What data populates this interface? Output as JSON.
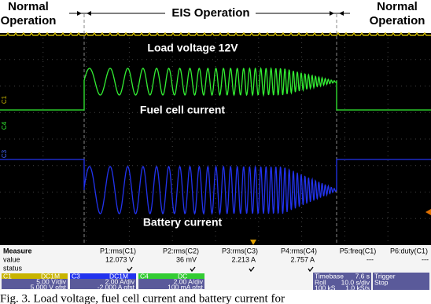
{
  "header": {
    "left": [
      "Normal",
      "Operation"
    ],
    "center": "EIS Operation",
    "right": [
      "Normal",
      "Operation"
    ]
  },
  "screen": {
    "annotations": {
      "load": "Load voltage 12V",
      "fuel": "Fuel cell current",
      "battery": "Battery current"
    },
    "channel_markers": [
      "C1",
      "C4",
      "C3"
    ]
  },
  "measure": {
    "columns": [
      "Measure",
      "P1:rms(C1)",
      "P2:rms(C2)",
      "P3:rms(C3)",
      "P4:rms(C4)",
      "P5:freq(C1)",
      "P6:duty(C1)"
    ],
    "row_labels": [
      "value",
      "status"
    ],
    "values": [
      "12.073 V",
      "36 mV",
      "2.213 A",
      "2.757 A",
      "---",
      "---"
    ]
  },
  "channels": [
    {
      "name": "C1",
      "coupling": "DC1M",
      "scale": "5.00 V/div",
      "offset": "5.000 V ofst"
    },
    {
      "name": "C3",
      "coupling": "DC1M",
      "scale": "2.00 A/div",
      "offset": "-2.000 A ofst"
    },
    {
      "name": "C4",
      "coupling": "DC",
      "scale": "2.00 A/div",
      "offset": "100 mA ofst"
    }
  ],
  "timebase": {
    "label": "Timebase",
    "value": "7.6 s",
    "mode": "Roll",
    "per_div": "10.0 s/div",
    "samples": "100 kS",
    "rate": "1.0 kS/s"
  },
  "trigger": {
    "label": "Trigger",
    "state": "Stop"
  },
  "caption": "Fig. 3. Load voltage, fuel cell current and battery current for"
}
